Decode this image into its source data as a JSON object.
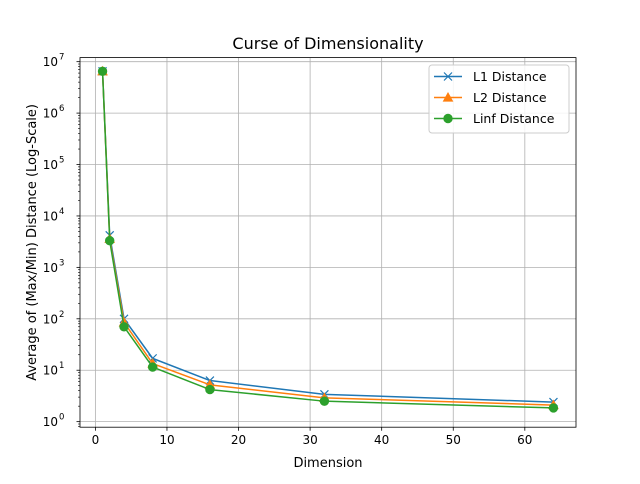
{
  "chart_data": {
    "type": "line",
    "title": "Curse of Dimensionality",
    "xlabel": "Dimension",
    "ylabel": "Average of (Max/Min) Distance (Log-Scale)",
    "x_scale": "linear",
    "y_scale": "log",
    "xlim": [
      -2.15,
      67.15
    ],
    "ylim": [
      0.78,
      12000000
    ],
    "x_ticks": [
      0,
      10,
      20,
      30,
      40,
      50,
      60
    ],
    "x_tick_labels": [
      "0",
      "10",
      "20",
      "30",
      "40",
      "50",
      "60"
    ],
    "y_ticks": [
      1,
      10,
      100,
      1000,
      10000,
      100000,
      1000000,
      10000000
    ],
    "y_tick_labels": [
      {
        "base": "10",
        "exp": "0"
      },
      {
        "base": "10",
        "exp": "1"
      },
      {
        "base": "10",
        "exp": "2"
      },
      {
        "base": "10",
        "exp": "3"
      },
      {
        "base": "10",
        "exp": "4"
      },
      {
        "base": "10",
        "exp": "5"
      },
      {
        "base": "10",
        "exp": "6"
      },
      {
        "base": "10",
        "exp": "7"
      }
    ],
    "grid": true,
    "legend_position": "upper-right",
    "series": [
      {
        "name": "L1 Distance",
        "color": "#1f77b4",
        "marker": "x",
        "x": [
          1,
          2,
          4,
          8,
          16,
          32,
          64
        ],
        "y": [
          6500000,
          4200,
          100,
          17,
          6.3,
          3.4,
          2.4
        ]
      },
      {
        "name": "L2 Distance",
        "color": "#ff7f0e",
        "marker": "triangle",
        "x": [
          1,
          2,
          4,
          8,
          16,
          32,
          64
        ],
        "y": [
          6500000,
          3600,
          85,
          13.5,
          5.2,
          2.9,
          2.1
        ]
      },
      {
        "name": "Linf Distance",
        "color": "#2ca02c",
        "marker": "circle",
        "x": [
          1,
          2,
          4,
          8,
          16,
          32,
          64
        ],
        "y": [
          6500000,
          3300,
          70,
          11.5,
          4.2,
          2.5,
          1.85
        ]
      }
    ]
  }
}
